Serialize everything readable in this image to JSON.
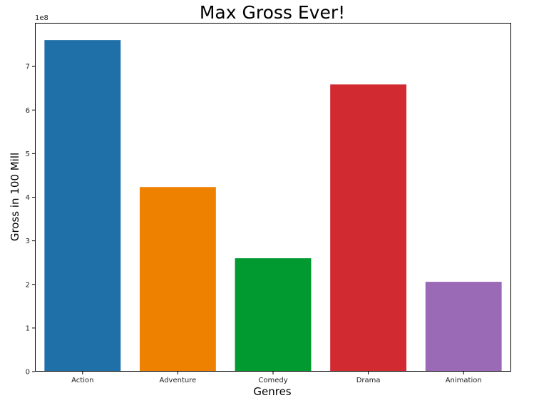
{
  "chart_data": {
    "type": "bar",
    "title": "Max Gross Ever!",
    "xlabel": "Genres",
    "ylabel": "Gross in 100 Mill",
    "y_offset_label": "1e8",
    "categories": [
      "Action",
      "Adventure",
      "Comedy",
      "Drama",
      "Animation"
    ],
    "values": [
      760505847,
      423315812,
      260000000,
      658672302,
      206000000
    ],
    "colors": [
      "#1f6fa8",
      "#ef8100",
      "#009a30",
      "#d12a31",
      "#9b6ab6"
    ],
    "ylim": [
      0,
      800000000
    ],
    "yticks": [
      0,
      100000000,
      200000000,
      300000000,
      400000000,
      500000000,
      600000000,
      700000000
    ],
    "ytick_labels": [
      "0",
      "1",
      "2",
      "3",
      "4",
      "5",
      "6",
      "7"
    ],
    "grid": false,
    "legend": "none"
  }
}
